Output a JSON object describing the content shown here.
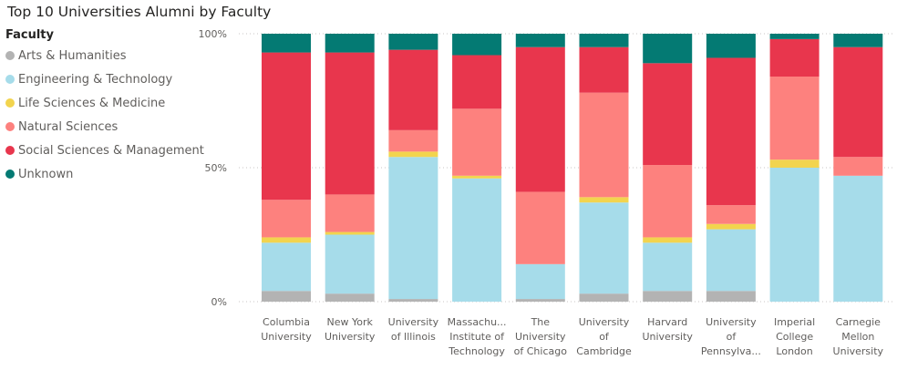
{
  "chart_data": {
    "type": "bar",
    "stacked": "100%",
    "title": "Top 10 Universities Alumni by Faculty",
    "legend_title": "Faculty",
    "legend_position": "left",
    "categories": [
      [
        "Columbia",
        "University"
      ],
      [
        "New York",
        "University"
      ],
      [
        "University",
        "of Illinois"
      ],
      [
        "Massachu...",
        "Institute of",
        "Technology"
      ],
      [
        "The",
        "University",
        "of Chicago"
      ],
      [
        "University",
        "of",
        "Cambridge"
      ],
      [
        "Harvard",
        "University"
      ],
      [
        "University",
        "of",
        "Pennsylva..."
      ],
      [
        "Imperial",
        "College",
        "London"
      ],
      [
        "Carnegie",
        "Mellon",
        "University"
      ]
    ],
    "y_ticks": [
      "0%",
      "50%",
      "100%"
    ],
    "ylim": [
      0,
      100
    ],
    "gridlines": true,
    "series": [
      {
        "name": "Arts & Humanities",
        "color": "#B3B3B3",
        "values": [
          4,
          3,
          1,
          0,
          1,
          3,
          4,
          4,
          0,
          0
        ]
      },
      {
        "name": "Engineering & Technology",
        "color": "#A6DCEA",
        "values": [
          18,
          22,
          53,
          46,
          13,
          34,
          18,
          23,
          50,
          47
        ]
      },
      {
        "name": "Life Sciences & Medicine",
        "color": "#F2D44E",
        "values": [
          2,
          1,
          2,
          1,
          0,
          2,
          2,
          2,
          3,
          0
        ]
      },
      {
        "name": "Natural Sciences",
        "color": "#FD817E",
        "values": [
          14,
          14,
          8,
          25,
          27,
          39,
          27,
          7,
          31,
          7
        ]
      },
      {
        "name": "Social Sciences & Management",
        "color": "#E8364D",
        "values": [
          55,
          53,
          30,
          20,
          54,
          17,
          38,
          55,
          14,
          41
        ]
      },
      {
        "name": "Unknown",
        "color": "#047A73",
        "values": [
          7,
          7,
          6,
          8,
          5,
          5,
          11,
          9,
          2,
          5
        ]
      }
    ]
  }
}
